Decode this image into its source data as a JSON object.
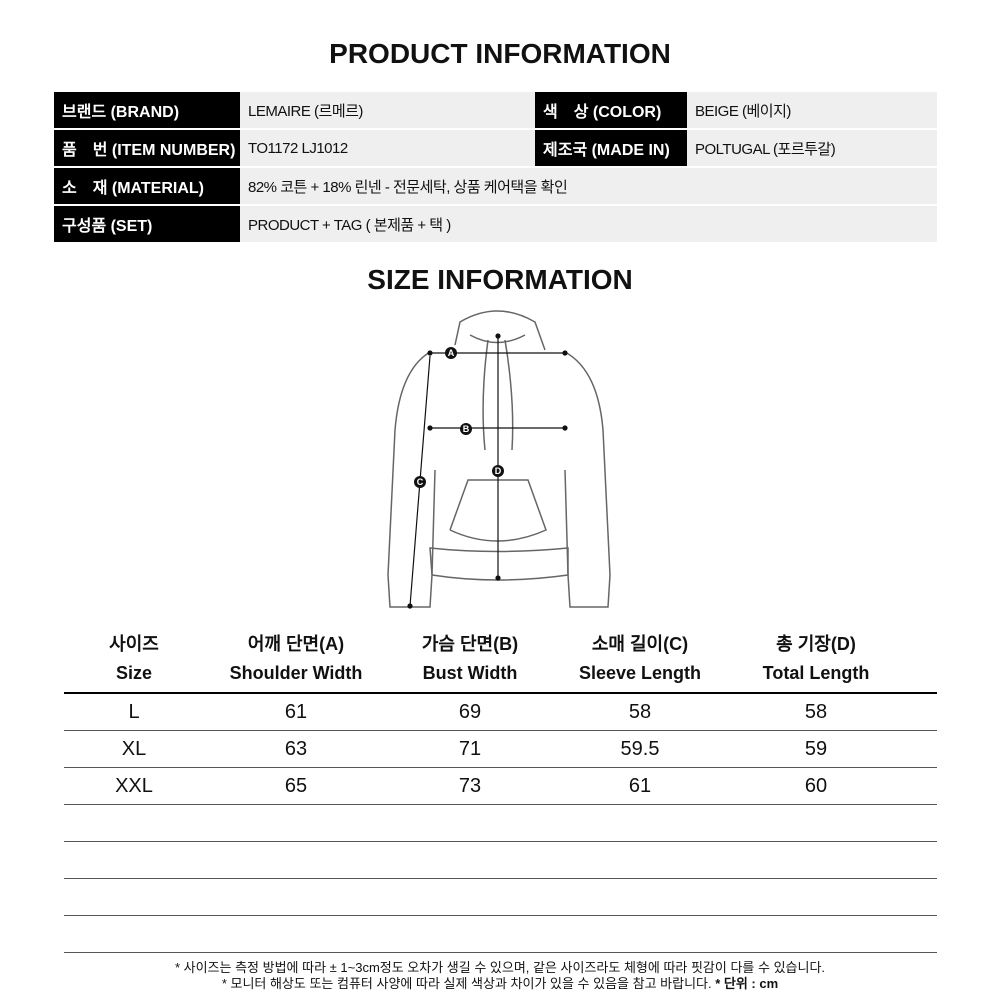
{
  "product_title": "PRODUCT INFORMATION",
  "info": {
    "brand_label": "브랜드 (BRAND)",
    "brand": "LEMAIRE (르메르)",
    "color_label": "색　상 (COLOR)",
    "color": "BEIGE (베이지)",
    "item_label": "품　번 (ITEM NUMBER)",
    "item": "TO1172 LJ1012",
    "made_label": "제조국 (MADE IN)",
    "made": "POLTUGAL (포르투갈)",
    "material_label": "소　재 (MATERIAL)",
    "material": "82% 코튼 + 18% 린넨 - 전문세탁, 상품 케어택을 확인",
    "set_label": "구성품 (SET)",
    "set": "PRODUCT + TAG ( 본제품 + 택 )"
  },
  "size_title": "SIZE INFORMATION",
  "diagram_labels": {
    "a": "A",
    "b": "B",
    "c": "C",
    "d": "D"
  },
  "size_table": {
    "headers": [
      [
        "사이즈",
        "Size"
      ],
      [
        "어깨 단면(A)",
        "Shoulder Width"
      ],
      [
        "가슴 단면(B)",
        "Bust Width"
      ],
      [
        "소매 길이(C)",
        "Sleeve Length"
      ],
      [
        "총 기장(D)",
        "Total Length"
      ]
    ],
    "rows": [
      [
        "L",
        "61",
        "69",
        "58",
        "58"
      ],
      [
        "XL",
        "63",
        "71",
        "59.5",
        "59"
      ],
      [
        "XXL",
        "65",
        "73",
        "61",
        "60"
      ]
    ]
  },
  "notes": {
    "line1": "* 사이즈는 측정 방법에 따라 ± 1~3cm정도 오차가 생길 수 있으며,  같은 사이즈라도 체형에 따라 핏감이 다를 수 있습니다.",
    "line2": "* 모니터 해상도 또는 컴퓨터 사양에 따라 실제 색상과 차이가 있을 수 있음을 참고 바랍니다.",
    "unit": "* 단위 : cm"
  }
}
